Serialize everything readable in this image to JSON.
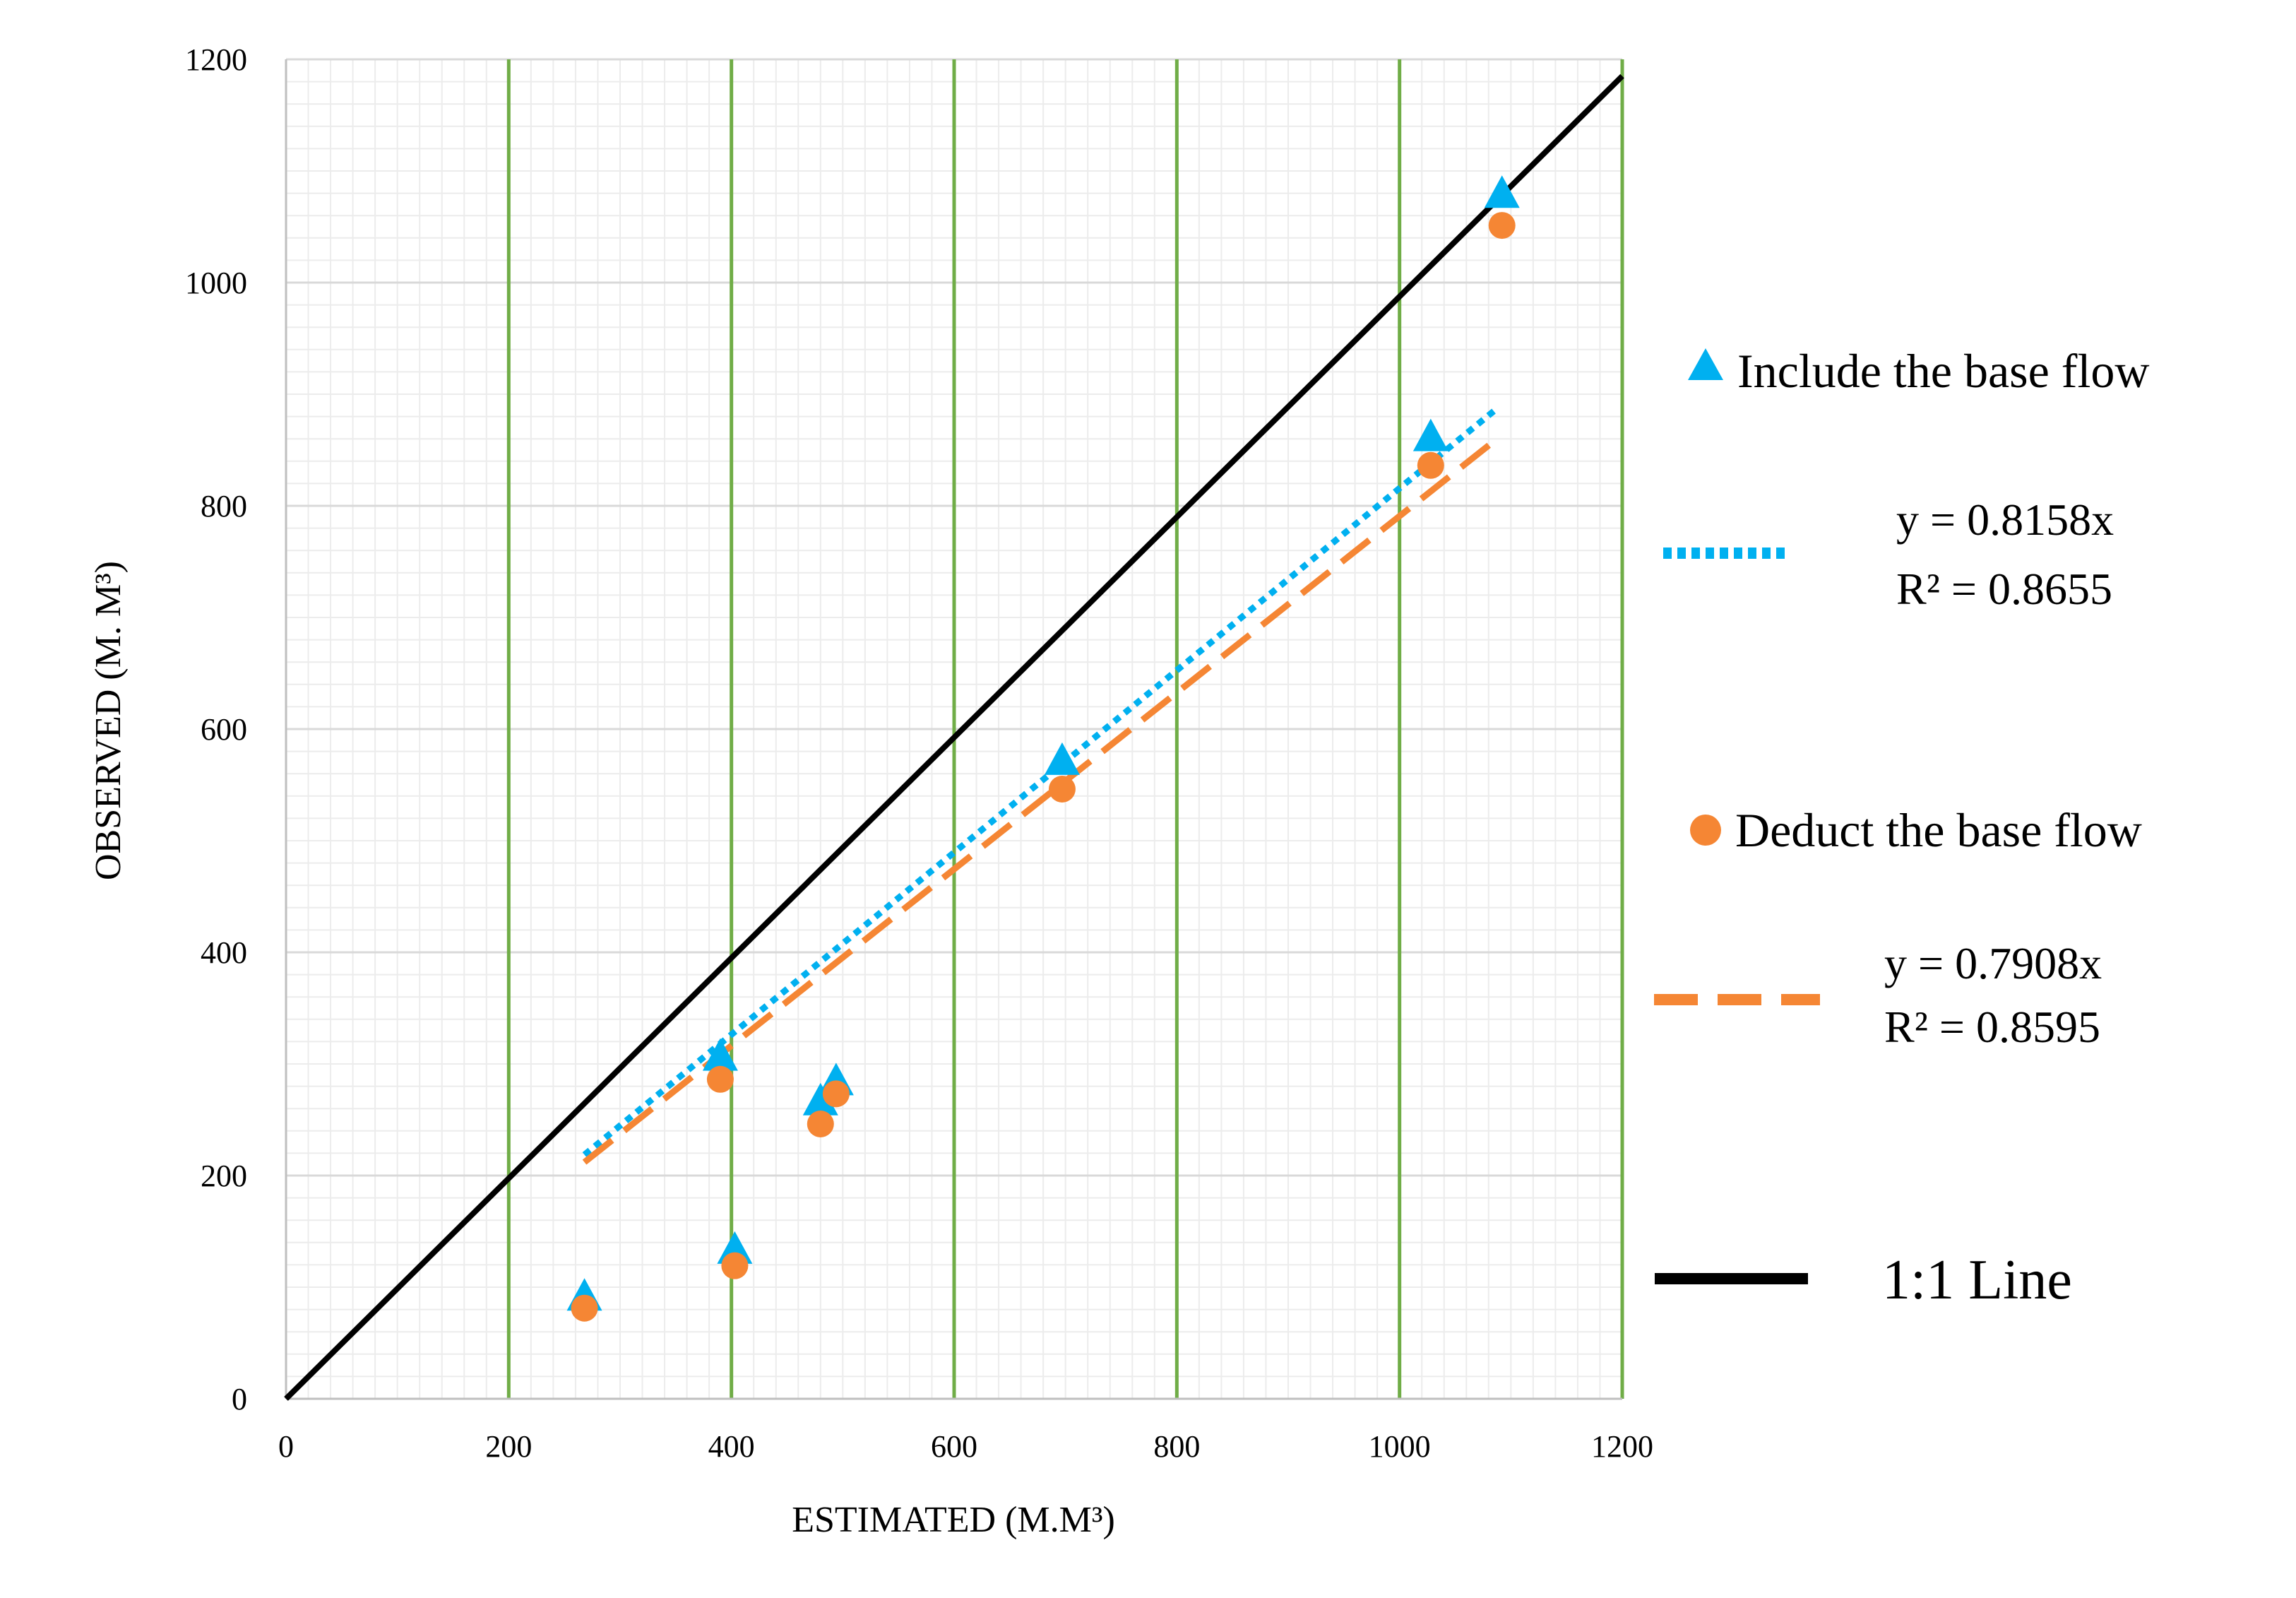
{
  "chart_data": {
    "type": "scatter",
    "xlabel": "ESTIMATED  (M.M³)",
    "ylabel": "OBSERVED (M. M³)",
    "xlim": [
      0,
      1200
    ],
    "ylim": [
      0,
      1200
    ],
    "xticks": [
      "0",
      "200",
      "400",
      "600",
      "800",
      "1000",
      "1200"
    ],
    "yticks": [
      "0",
      "200",
      "400",
      "600",
      "800",
      "1000",
      "1200"
    ],
    "grid": true,
    "legend_position": "right",
    "series": [
      {
        "name": "Include the base flow",
        "marker": "triangle",
        "color": "#00b0f0",
        "points": [
          [
            268,
            90
          ],
          [
            403,
            132
          ],
          [
            390,
            305
          ],
          [
            480,
            265
          ],
          [
            494,
            283
          ],
          [
            697,
            570
          ],
          [
            1028,
            860
          ],
          [
            1092,
            1078
          ]
        ],
        "trendline": {
          "slope": 0.8158,
          "x_range": [
            268,
            1085
          ],
          "style": "dotted",
          "equation": "y = 0.8158x",
          "r2": "R² = 0.8655"
        }
      },
      {
        "name": "Deduct the base flow",
        "marker": "circle",
        "color": "#f58634",
        "points": [
          [
            268,
            85
          ],
          [
            403,
            123
          ],
          [
            390,
            290
          ],
          [
            480,
            250
          ],
          [
            494,
            277
          ],
          [
            697,
            550
          ],
          [
            1028,
            840
          ],
          [
            1092,
            1055
          ]
        ],
        "trendline": {
          "slope": 0.7908,
          "x_range": [
            268,
            1085
          ],
          "style": "dashed",
          "equation": "y = 0.7908x",
          "r2": "R² = 0.8595"
        }
      }
    ],
    "reference_line": {
      "name": "1:1 Line",
      "color": "#000000",
      "points": [
        [
          0,
          0
        ],
        [
          1200,
          1185
        ]
      ]
    }
  }
}
